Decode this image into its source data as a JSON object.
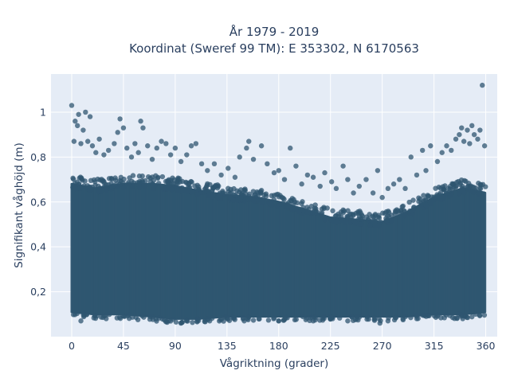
{
  "chart_data": {
    "type": "scatter",
    "title_line1": "År 1979 - 2019",
    "title_line2": "Koordinat (Sweref 99 TM): E 353302, N 6170563",
    "xlabel": "Vågriktning (grader)",
    "ylabel": "Signifikant våghöjd (m)",
    "xlim": [
      -18,
      370
    ],
    "ylim": [
      0.0,
      1.17
    ],
    "xticks": [
      0,
      45,
      90,
      135,
      180,
      225,
      270,
      315,
      360
    ],
    "xtick_labels": [
      "0",
      "45",
      "90",
      "135",
      "180",
      "225",
      "270",
      "315",
      "360"
    ],
    "yticks": [
      0.2,
      0.4,
      0.6,
      0.8,
      1
    ],
    "ytick_labels": [
      "0,2",
      "0,4",
      "0,6",
      "0,8",
      "1"
    ],
    "grid": true,
    "marker_color": "#2f5670",
    "plot_background": "#e5ecf6",
    "band_profile": {
      "direction": [
        0,
        20,
        45,
        70,
        90,
        110,
        135,
        160,
        180,
        200,
        225,
        250,
        270,
        290,
        315,
        340,
        360
      ],
      "lower_edge": [
        0.11,
        0.1,
        0.1,
        0.09,
        0.08,
        0.08,
        0.09,
        0.09,
        0.09,
        0.09,
        0.09,
        0.09,
        0.09,
        0.09,
        0.1,
        0.1,
        0.11
      ],
      "upper_edge": [
        0.68,
        0.66,
        0.68,
        0.68,
        0.67,
        0.65,
        0.63,
        0.62,
        0.6,
        0.57,
        0.53,
        0.52,
        0.51,
        0.55,
        0.62,
        0.66,
        0.64
      ]
    },
    "outlier_points": [
      {
        "x": 0,
        "y": 1.03
      },
      {
        "x": 2,
        "y": 0.87
      },
      {
        "x": 3,
        "y": 0.96
      },
      {
        "x": 5,
        "y": 0.94
      },
      {
        "x": 6,
        "y": 0.99
      },
      {
        "x": 8,
        "y": 0.86
      },
      {
        "x": 10,
        "y": 0.92
      },
      {
        "x": 12,
        "y": 1.0
      },
      {
        "x": 14,
        "y": 0.87
      },
      {
        "x": 16,
        "y": 0.98
      },
      {
        "x": 18,
        "y": 0.85
      },
      {
        "x": 21,
        "y": 0.82
      },
      {
        "x": 24,
        "y": 0.88
      },
      {
        "x": 28,
        "y": 0.81
      },
      {
        "x": 32,
        "y": 0.83
      },
      {
        "x": 37,
        "y": 0.86
      },
      {
        "x": 40,
        "y": 0.91
      },
      {
        "x": 42,
        "y": 0.97
      },
      {
        "x": 45,
        "y": 0.93
      },
      {
        "x": 48,
        "y": 0.84
      },
      {
        "x": 52,
        "y": 0.8
      },
      {
        "x": 55,
        "y": 0.86
      },
      {
        "x": 58,
        "y": 0.82
      },
      {
        "x": 60,
        "y": 0.96
      },
      {
        "x": 62,
        "y": 0.93
      },
      {
        "x": 66,
        "y": 0.85
      },
      {
        "x": 70,
        "y": 0.79
      },
      {
        "x": 74,
        "y": 0.84
      },
      {
        "x": 78,
        "y": 0.87
      },
      {
        "x": 82,
        "y": 0.86
      },
      {
        "x": 86,
        "y": 0.81
      },
      {
        "x": 90,
        "y": 0.84
      },
      {
        "x": 95,
        "y": 0.78
      },
      {
        "x": 100,
        "y": 0.81
      },
      {
        "x": 104,
        "y": 0.85
      },
      {
        "x": 108,
        "y": 0.86
      },
      {
        "x": 113,
        "y": 0.77
      },
      {
        "x": 118,
        "y": 0.74
      },
      {
        "x": 124,
        "y": 0.77
      },
      {
        "x": 130,
        "y": 0.72
      },
      {
        "x": 136,
        "y": 0.75
      },
      {
        "x": 142,
        "y": 0.71
      },
      {
        "x": 146,
        "y": 0.8
      },
      {
        "x": 152,
        "y": 0.84
      },
      {
        "x": 154,
        "y": 0.87
      },
      {
        "x": 158,
        "y": 0.79
      },
      {
        "x": 165,
        "y": 0.85
      },
      {
        "x": 170,
        "y": 0.77
      },
      {
        "x": 176,
        "y": 0.73
      },
      {
        "x": 180,
        "y": 0.74
      },
      {
        "x": 185,
        "y": 0.7
      },
      {
        "x": 190,
        "y": 0.84
      },
      {
        "x": 195,
        "y": 0.76
      },
      {
        "x": 200,
        "y": 0.68
      },
      {
        "x": 205,
        "y": 0.72
      },
      {
        "x": 210,
        "y": 0.71
      },
      {
        "x": 216,
        "y": 0.67
      },
      {
        "x": 220,
        "y": 0.73
      },
      {
        "x": 226,
        "y": 0.69
      },
      {
        "x": 230,
        "y": 0.66
      },
      {
        "x": 236,
        "y": 0.76
      },
      {
        "x": 240,
        "y": 0.7
      },
      {
        "x": 245,
        "y": 0.64
      },
      {
        "x": 250,
        "y": 0.67
      },
      {
        "x": 256,
        "y": 0.7
      },
      {
        "x": 262,
        "y": 0.64
      },
      {
        "x": 266,
        "y": 0.74
      },
      {
        "x": 270,
        "y": 0.62
      },
      {
        "x": 275,
        "y": 0.66
      },
      {
        "x": 280,
        "y": 0.68
      },
      {
        "x": 285,
        "y": 0.7
      },
      {
        "x": 290,
        "y": 0.66
      },
      {
        "x": 295,
        "y": 0.8
      },
      {
        "x": 300,
        "y": 0.72
      },
      {
        "x": 305,
        "y": 0.83
      },
      {
        "x": 308,
        "y": 0.74
      },
      {
        "x": 312,
        "y": 0.85
      },
      {
        "x": 318,
        "y": 0.78
      },
      {
        "x": 322,
        "y": 0.82
      },
      {
        "x": 326,
        "y": 0.85
      },
      {
        "x": 330,
        "y": 0.83
      },
      {
        "x": 334,
        "y": 0.88
      },
      {
        "x": 337,
        "y": 0.9
      },
      {
        "x": 339,
        "y": 0.93
      },
      {
        "x": 341,
        "y": 0.87
      },
      {
        "x": 344,
        "y": 0.92
      },
      {
        "x": 346,
        "y": 0.86
      },
      {
        "x": 348,
        "y": 0.94
      },
      {
        "x": 350,
        "y": 0.9
      },
      {
        "x": 353,
        "y": 0.88
      },
      {
        "x": 355,
        "y": 0.92
      },
      {
        "x": 357,
        "y": 1.12
      },
      {
        "x": 359,
        "y": 0.85
      },
      {
        "x": 8,
        "y": 0.07
      },
      {
        "x": 30,
        "y": 0.08
      },
      {
        "x": 95,
        "y": 0.06
      },
      {
        "x": 100,
        "y": 0.07
      },
      {
        "x": 120,
        "y": 0.07
      },
      {
        "x": 150,
        "y": 0.07
      },
      {
        "x": 180,
        "y": 0.07
      },
      {
        "x": 210,
        "y": 0.07
      },
      {
        "x": 240,
        "y": 0.07
      },
      {
        "x": 268,
        "y": 0.06
      },
      {
        "x": 275,
        "y": 0.07
      },
      {
        "x": 300,
        "y": 0.08
      },
      {
        "x": 340,
        "y": 0.08
      }
    ]
  }
}
